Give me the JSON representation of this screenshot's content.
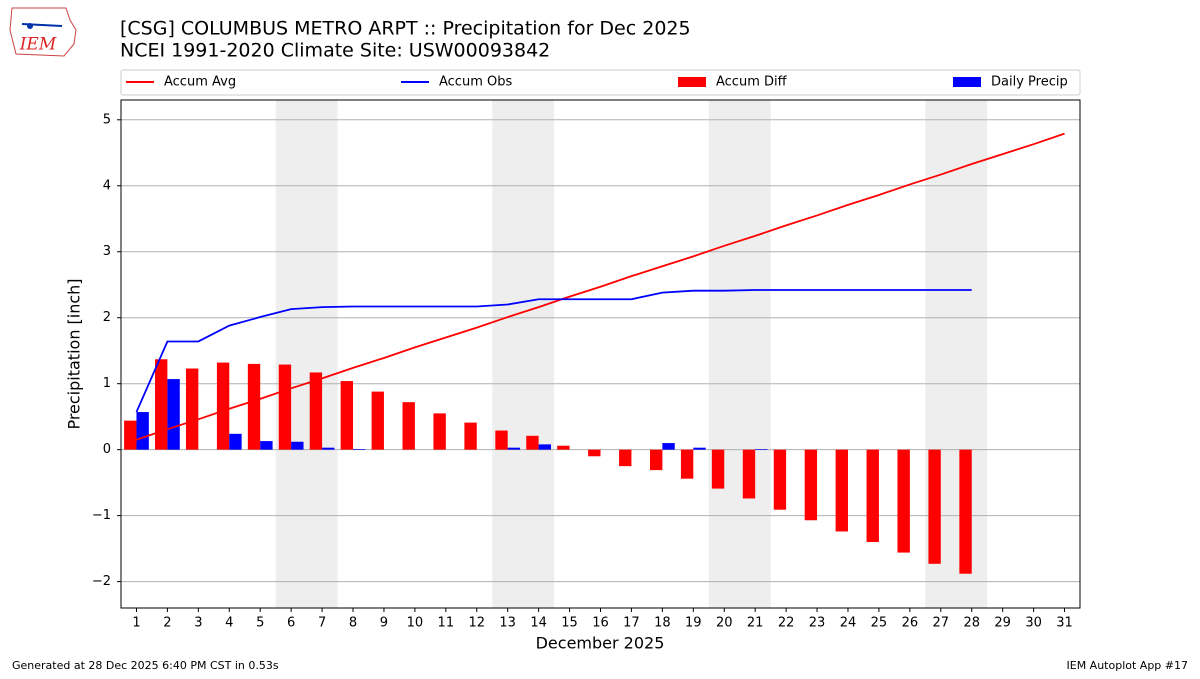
{
  "logo": "IEM",
  "footer_left": "Generated at 28 Dec 2025 6:40 PM CST in 0.53s",
  "footer_right": "IEM Autoplot App #17",
  "chart_data": {
    "type": "combo",
    "title": "[CSG] COLUMBUS METRO ARPT :: Precipitation for Dec 2025",
    "subtitle": "NCEI 1991-2020 Climate Site: USW00093842",
    "x_label": "December 2025",
    "y_label": "Precipitation [inch]",
    "x": [
      1,
      2,
      3,
      4,
      5,
      6,
      7,
      8,
      9,
      10,
      11,
      12,
      13,
      14,
      15,
      16,
      17,
      18,
      19,
      20,
      21,
      22,
      23,
      24,
      25,
      26,
      27,
      28,
      29,
      30,
      31
    ],
    "xlim": [
      0.5,
      31.5
    ],
    "xticks": [
      1,
      2,
      3,
      4,
      5,
      6,
      7,
      8,
      9,
      10,
      11,
      12,
      13,
      14,
      15,
      16,
      17,
      18,
      19,
      20,
      21,
      22,
      23,
      24,
      25,
      26,
      27,
      28,
      29,
      30,
      31
    ],
    "ylim": [
      -2.4,
      5.3
    ],
    "yticks": [
      {
        "value": -2,
        "label": "−2"
      },
      {
        "value": -1,
        "label": "−1"
      },
      0,
      1,
      2,
      3,
      4,
      5
    ],
    "grid": true,
    "weekend_spans": [
      [
        5.5,
        7.5
      ],
      [
        12.5,
        14.5
      ],
      [
        19.5,
        21.5
      ],
      [
        26.5,
        28.5
      ]
    ],
    "weekend_color": "#eeeeee",
    "series": [
      {
        "name": "Accum Avg",
        "kind": "line",
        "color": "#ff0000",
        "values": [
          0.15,
          0.31,
          0.46,
          0.62,
          0.77,
          0.93,
          1.08,
          1.24,
          1.39,
          1.55,
          1.7,
          1.85,
          2.01,
          2.16,
          2.32,
          2.47,
          2.63,
          2.78,
          2.93,
          3.09,
          3.24,
          3.4,
          3.55,
          3.71,
          3.86,
          4.02,
          4.17,
          4.33,
          4.48,
          4.63,
          4.79
        ]
      },
      {
        "name": "Accum Obs",
        "kind": "line",
        "color": "#0000ff",
        "values": [
          0.57,
          1.64,
          1.64,
          1.88,
          2.01,
          2.13,
          2.16,
          2.17,
          2.17,
          2.17,
          2.17,
          2.17,
          2.2,
          2.28,
          2.28,
          2.28,
          2.28,
          2.38,
          2.41,
          2.41,
          2.42,
          2.42,
          2.42,
          2.42,
          2.42,
          2.42,
          2.42,
          2.42,
          null,
          null,
          null
        ]
      },
      {
        "name": "Accum Diff",
        "kind": "bar",
        "color": "#ff0000",
        "values": [
          0.44,
          1.37,
          1.23,
          1.32,
          1.3,
          1.29,
          1.17,
          1.04,
          0.88,
          0.72,
          0.55,
          0.41,
          0.29,
          0.21,
          0.06,
          -0.1,
          -0.25,
          -0.31,
          -0.44,
          -0.59,
          -0.74,
          -0.91,
          -1.07,
          -1.24,
          -1.4,
          -1.56,
          -1.73,
          -1.88,
          null,
          null,
          null
        ]
      },
      {
        "name": "Daily Precip",
        "kind": "bar",
        "color": "#0000ff",
        "values": [
          0.57,
          1.07,
          0,
          0.24,
          0.13,
          0.12,
          0.03,
          0.01,
          0,
          0,
          0,
          0,
          0.03,
          0.08,
          0,
          0,
          0,
          0.1,
          0.03,
          0,
          0.01,
          0,
          0,
          0,
          0,
          0,
          0,
          0,
          null,
          null,
          null
        ]
      }
    ]
  }
}
